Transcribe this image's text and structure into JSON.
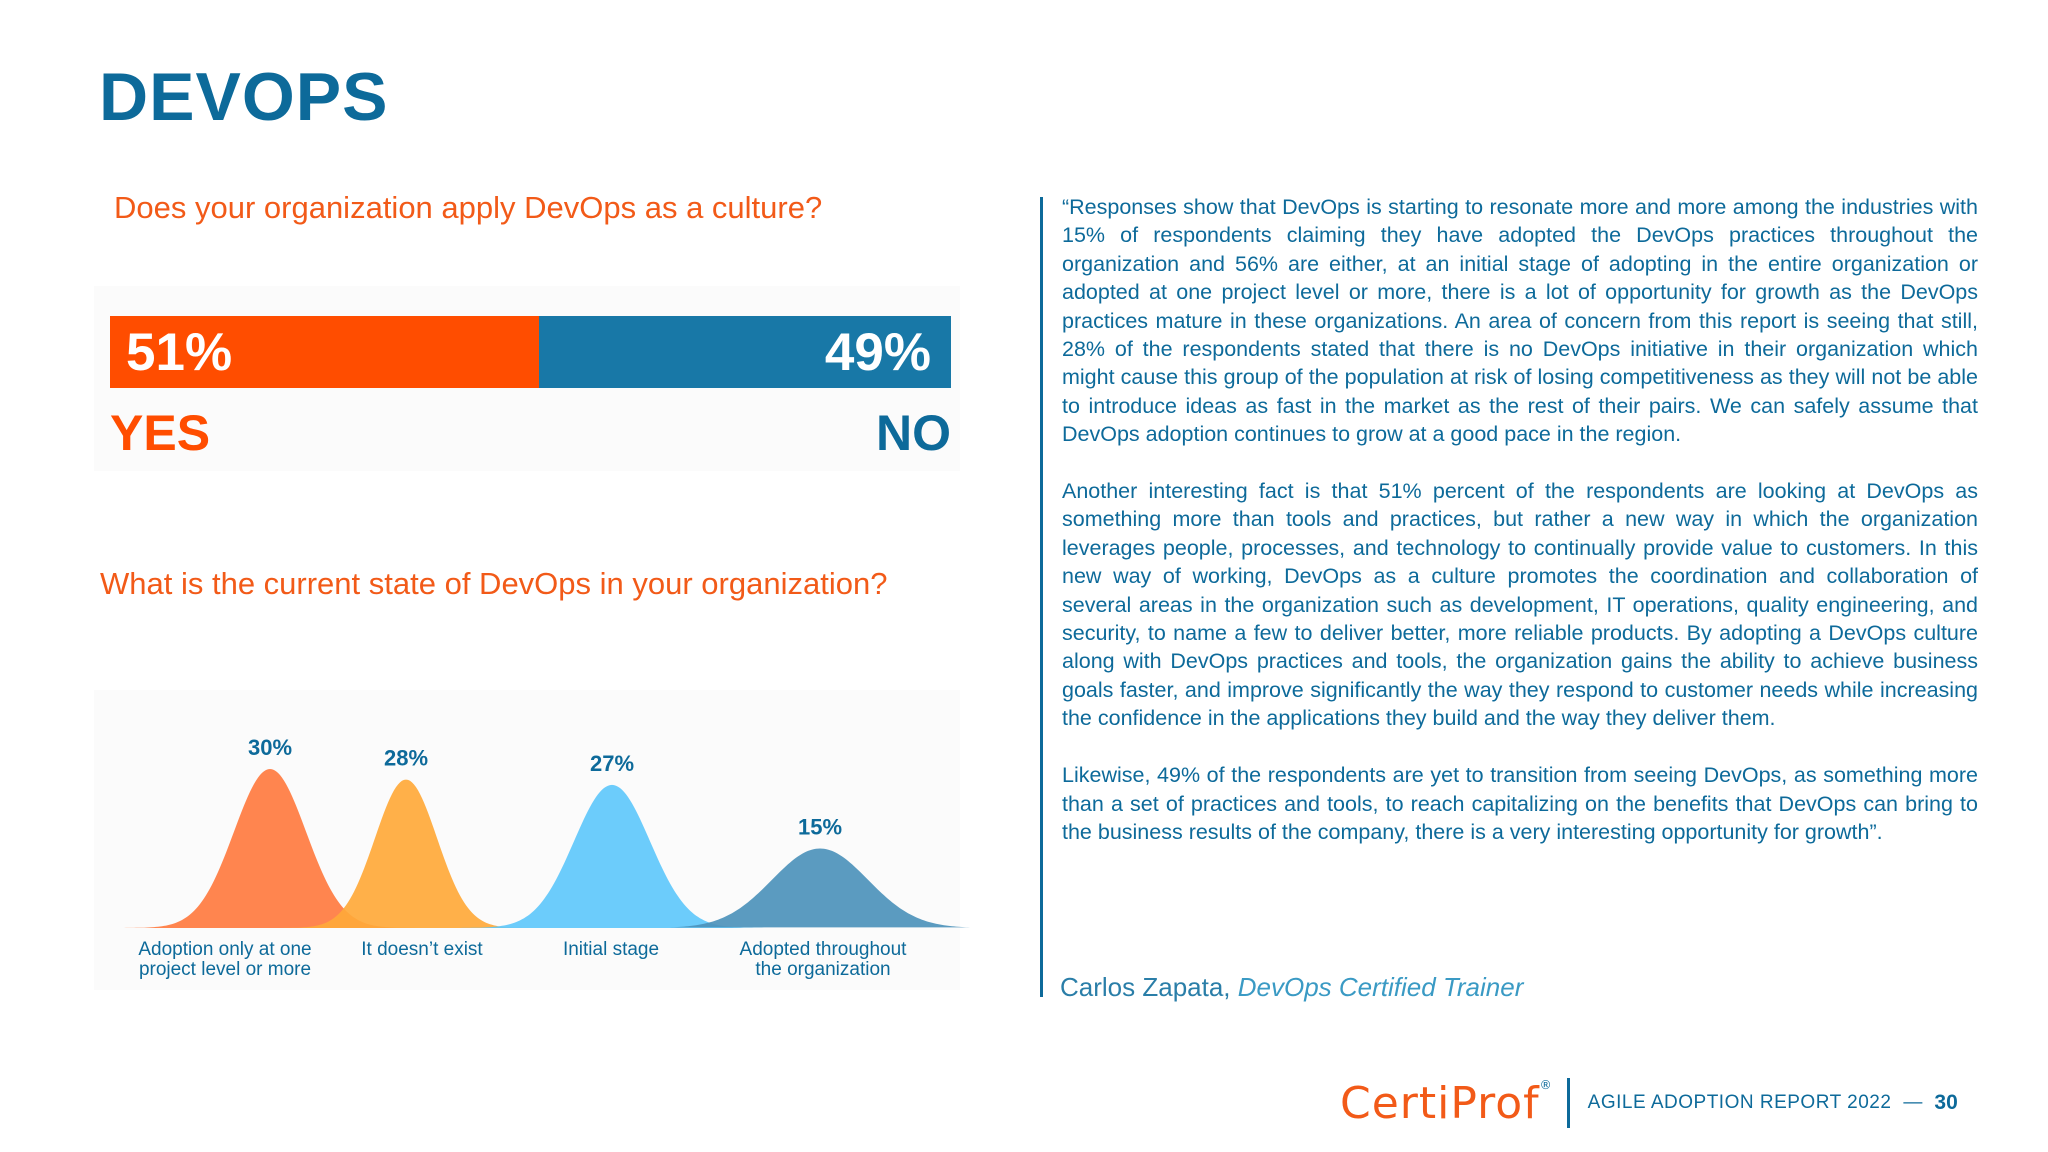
{
  "title": "DEVOPS",
  "question1": "Does your organization apply DevOps as a culture?",
  "culture_bar": {
    "yes_percent_label": "51%",
    "no_percent_label": "49%",
    "yes_value": 51,
    "no_value": 49,
    "yes_label": "YES",
    "no_label": "NO",
    "yes_color": "#ff4d00",
    "no_color": "#1878a7"
  },
  "question2": "What is the current state of DevOps in your organization?",
  "chart_data": {
    "type": "area",
    "title": "",
    "categories": [
      "Adoption only at one project level or more",
      "It doesn’t exist",
      "Initial stage",
      "Adopted throughout the organization"
    ],
    "category_lines": [
      [
        "Adoption only at one",
        "project level or more"
      ],
      [
        "It doesn’t exist"
      ],
      [
        "Initial stage"
      ],
      [
        "Adopted throughout",
        "the organization"
      ]
    ],
    "values": [
      30,
      28,
      27,
      15
    ],
    "value_labels": [
      "30%",
      "28%",
      "27%",
      "15%"
    ],
    "colors": [
      "#ff7b40",
      "#ffa93a",
      "#5fc8fb",
      "#4d92bb"
    ],
    "label_color": "#0d6a9a"
  },
  "quote": {
    "paragraphs": [
      "“Responses show that DevOps is starting to resonate more and more among the industries with 15% of respondents claiming they have adopted the DevOps practices throughout the organization and 56% are either, at an initial stage of adopting in the entire organization or adopted at one project level or more, there is a lot of opportunity for growth as the DevOps practices mature in these organizations. An area of concern from this report is seeing that still, 28% of the respondents stated that there is no DevOps initiative in their organization which might cause this group of the population at risk of losing competitiveness as they will not be able to introduce ideas as fast in the market as the rest of their pairs. We can safely assume that DevOps adoption continues to grow at a good pace in the region.",
      "Another interesting fact is that 51% percent of the respondents are looking at DevOps as something more than tools and practices, but rather a new way in which the organization leverages people, processes, and technology to continually provide value to customers.  In this new way of working, DevOps as a culture promotes the coordination and collaboration of several areas in the organization such as development, IT operations, quality engineering, and security, to name a few to deliver better, more reliable products. By adopting a DevOps culture along with DevOps practices and tools, the organization gains the ability to achieve business goals faster, and improve significantly the way they respond to customer needs while increasing the confidence in the applications they build and the way they deliver them.",
      "Likewise, 49% of the respondents are yet to transition from seeing DevOps, as something more than a set of practices and tools, to reach capitalizing on the benefits that DevOps can bring to the business results of the company, there is a  very interesting opportunity for growth”."
    ],
    "author_name": "Carlos Zapata,",
    "author_role": "DevOps Certified Trainer"
  },
  "footer": {
    "logo_certi": "Certi",
    "logo_prof": "Prof",
    "logo_reg": "®",
    "report": "AGILE ADOPTION REPORT 2022",
    "dash": "—",
    "page": "30"
  }
}
